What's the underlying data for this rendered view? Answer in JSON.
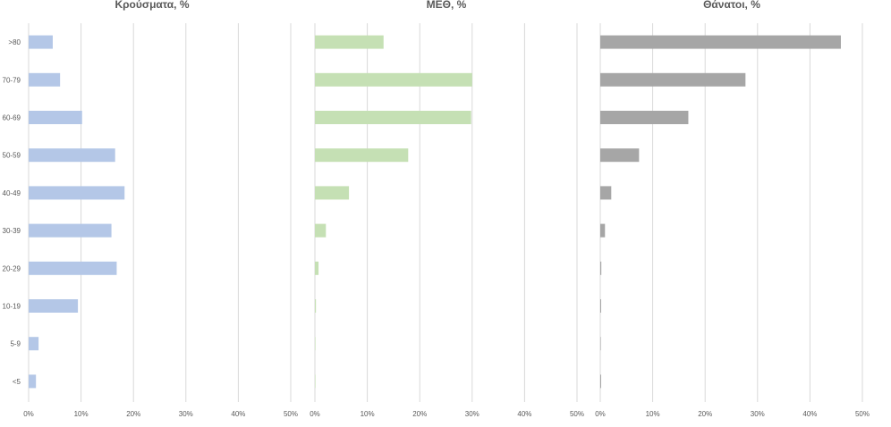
{
  "chart_data": {
    "type": "bar",
    "orientation": "horizontal",
    "categories": [
      ">80",
      "70-79",
      "60-69",
      "50-59",
      "40-49",
      "30-39",
      "20-29",
      "10-19",
      "5-9",
      "<5"
    ],
    "xlim": [
      0,
      50
    ],
    "x_ticks": [
      "0%",
      "10%",
      "20%",
      "30%",
      "40%",
      "50%"
    ],
    "grid": "vertical",
    "legend": "none",
    "panels": [
      {
        "title": "Κρούσματα, %",
        "color": "#b4c7e7",
        "values": [
          4.6,
          6.0,
          10.2,
          16.5,
          18.3,
          15.8,
          16.8,
          9.4,
          1.9,
          1.4
        ]
      },
      {
        "title": "ΜΕΘ, %",
        "color": "#c5e0b4",
        "values": [
          13.1,
          30.0,
          29.8,
          17.8,
          6.5,
          2.1,
          0.7,
          0.2,
          0,
          0
        ]
      },
      {
        "title": "Θάνατοι, %",
        "color": "#a6a6a6",
        "values": [
          45.9,
          27.7,
          16.8,
          7.4,
          2.1,
          0.9,
          0.2,
          0.1,
          0,
          0.1
        ]
      }
    ]
  }
}
